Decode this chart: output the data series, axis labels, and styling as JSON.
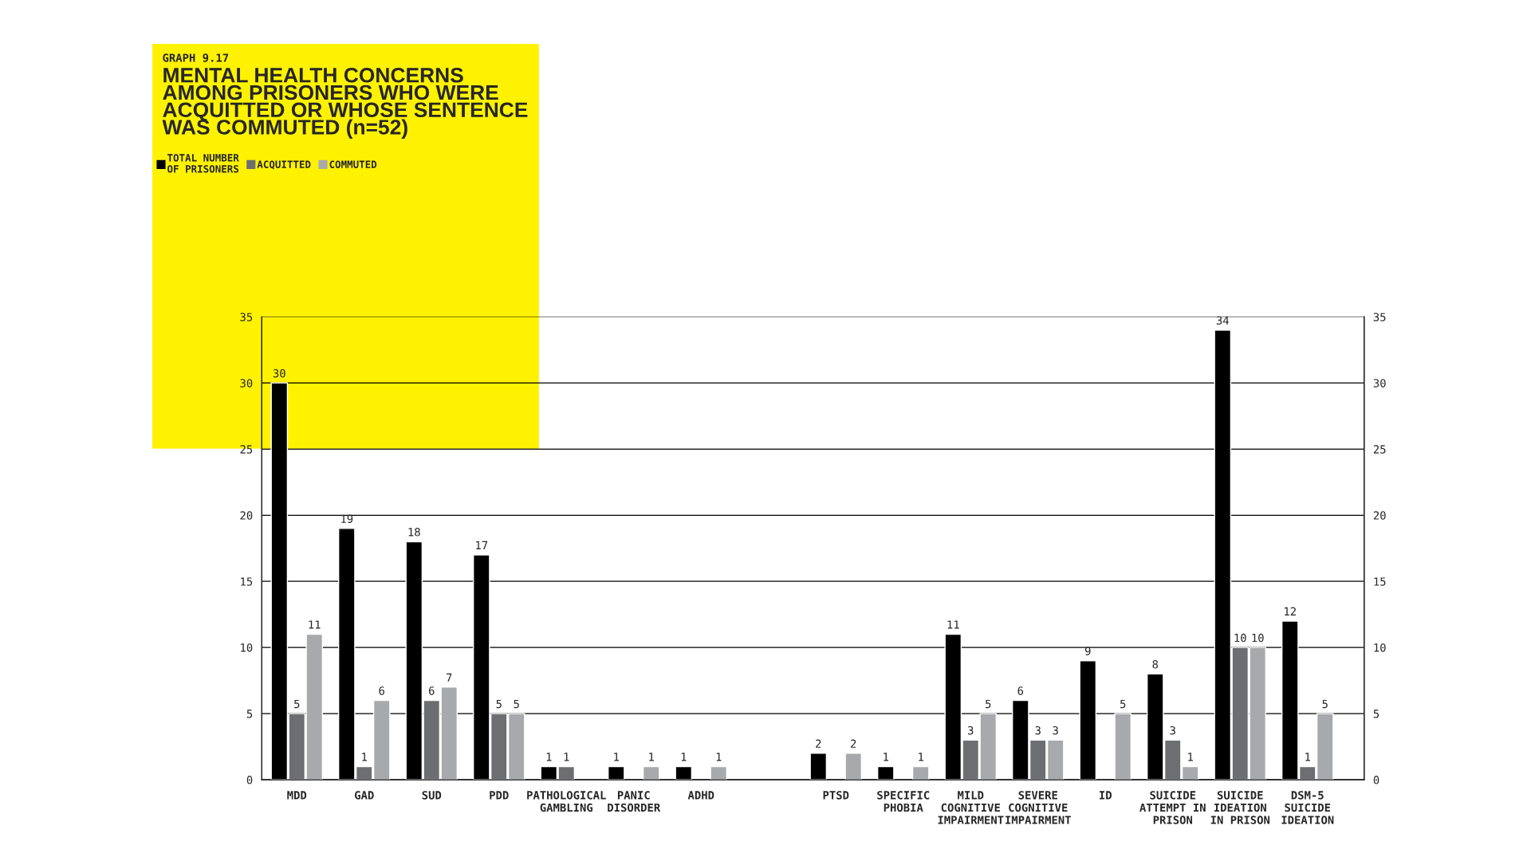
{
  "chart_data": {
    "type": "bar",
    "subtitle": "GRAPH 9.17",
    "title": "MENTAL HEALTH CONCERNS\nAMONG PRISONERS WHO WERE\nACQUITTED OR WHOSE SENTENCE\nWAS COMMUTED (n=52)",
    "categories": [
      "MDD",
      "GAD",
      "SUD",
      "PDD",
      "PATHOLOGICAL\nGAMBLING",
      "PANIC\nDISORDER",
      "ADHD",
      null,
      "PTSD",
      "SPECIFIC\nPHOBIA",
      "MILD\nCOGNITIVE\nIMPAIRMENT",
      "SEVERE\nCOGNITIVE\nIMPAIRMENT",
      "ID",
      "SUICIDE\nATTEMPT IN\nPRISON",
      "SUICIDE\nIDEATION\nIN PRISON",
      "DSM-5\nSUICIDE\nIDEATION"
    ],
    "series": [
      {
        "name": "TOTAL NUMBER\nOF PRISONERS",
        "color": "#000000",
        "values": [
          30,
          19,
          18,
          17,
          1,
          1,
          1,
          null,
          2,
          1,
          11,
          6,
          9,
          8,
          34,
          12
        ]
      },
      {
        "name": "ACQUITTED",
        "color": "#6d6e71",
        "values": [
          5,
          1,
          6,
          5,
          1,
          null,
          null,
          null,
          null,
          null,
          3,
          3,
          null,
          3,
          10,
          1
        ]
      },
      {
        "name": "COMMUTED",
        "color": "#a7a9ac",
        "values": [
          11,
          6,
          7,
          5,
          null,
          1,
          1,
          null,
          2,
          1,
          5,
          3,
          5,
          1,
          10,
          5
        ]
      }
    ],
    "ylim": [
      0,
      35
    ],
    "yticks": [
      0,
      5,
      10,
      15,
      20,
      25,
      30,
      35
    ],
    "y2lim": [
      0,
      35
    ],
    "y2ticks": [
      0,
      5,
      10,
      15,
      20,
      25,
      30,
      35
    ],
    "grid": "y",
    "legend": "top left",
    "data_labels": true
  }
}
